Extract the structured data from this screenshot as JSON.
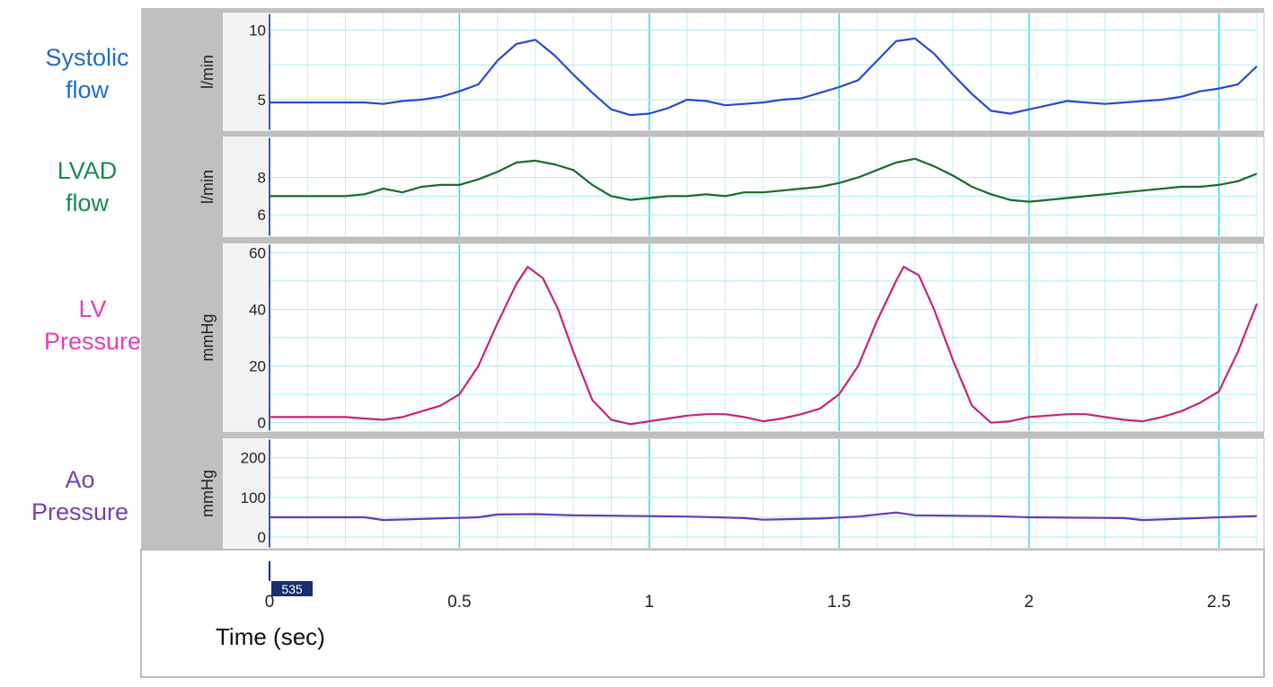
{
  "chart_data": {
    "type": "line",
    "time_axis": {
      "label": "Time (sec)",
      "range": [
        0,
        2.6
      ],
      "ticks": [
        0,
        0.5,
        1,
        1.5,
        2,
        2.5
      ],
      "tick_labels": [
        "0",
        "0.5",
        "1",
        "1.5",
        "2",
        "2.5"
      ],
      "grid_step": 0.1
    },
    "marker_label": "535",
    "panels": [
      {
        "name": "Systolic\nflow",
        "unit": "l/min",
        "color": "#2a4bd0",
        "label_color": "#1f6fc1",
        "yrange": [
          3,
          11
        ],
        "yticks": [
          5,
          10
        ],
        "series": {
          "x": [
            0.0,
            0.1,
            0.2,
            0.25,
            0.3,
            0.35,
            0.4,
            0.45,
            0.5,
            0.55,
            0.6,
            0.65,
            0.7,
            0.75,
            0.8,
            0.85,
            0.9,
            0.95,
            1.0,
            1.05,
            1.1,
            1.15,
            1.2,
            1.25,
            1.3,
            1.35,
            1.4,
            1.45,
            1.5,
            1.55,
            1.6,
            1.65,
            1.7,
            1.75,
            1.8,
            1.85,
            1.9,
            1.95,
            2.0,
            2.05,
            2.1,
            2.15,
            2.2,
            2.25,
            2.3,
            2.35,
            2.4,
            2.45,
            2.5,
            2.55,
            2.6
          ],
          "y": [
            4.8,
            4.8,
            4.8,
            4.8,
            4.7,
            4.9,
            5.0,
            5.2,
            5.6,
            6.1,
            7.8,
            9.0,
            9.3,
            8.2,
            6.8,
            5.5,
            4.3,
            3.9,
            4.0,
            4.4,
            5.0,
            4.9,
            4.6,
            4.7,
            4.8,
            5.0,
            5.1,
            5.5,
            5.9,
            6.4,
            7.8,
            9.2,
            9.4,
            8.3,
            6.8,
            5.4,
            4.2,
            4.0,
            4.3,
            4.6,
            4.9,
            4.8,
            4.7,
            4.8,
            4.9,
            5.0,
            5.2,
            5.6,
            5.8,
            6.1,
            7.4
          ]
        }
      },
      {
        "name": "LVAD\nflow",
        "unit": "l/min",
        "color": "#1d6a2c",
        "label_color": "#1c8a50",
        "yrange": [
          5,
          10
        ],
        "yticks": [
          6,
          8
        ],
        "series": {
          "x": [
            0.0,
            0.1,
            0.2,
            0.25,
            0.3,
            0.35,
            0.4,
            0.45,
            0.5,
            0.55,
            0.6,
            0.65,
            0.7,
            0.75,
            0.8,
            0.85,
            0.9,
            0.95,
            1.0,
            1.05,
            1.1,
            1.15,
            1.2,
            1.25,
            1.3,
            1.35,
            1.4,
            1.45,
            1.5,
            1.55,
            1.6,
            1.65,
            1.7,
            1.75,
            1.8,
            1.85,
            1.9,
            1.95,
            2.0,
            2.05,
            2.1,
            2.15,
            2.2,
            2.25,
            2.3,
            2.35,
            2.4,
            2.45,
            2.5,
            2.55,
            2.6
          ],
          "y": [
            7.0,
            7.0,
            7.0,
            7.1,
            7.4,
            7.2,
            7.5,
            7.6,
            7.6,
            7.9,
            8.3,
            8.8,
            8.9,
            8.7,
            8.4,
            7.6,
            7.0,
            6.8,
            6.9,
            7.0,
            7.0,
            7.1,
            7.0,
            7.2,
            7.2,
            7.3,
            7.4,
            7.5,
            7.7,
            8.0,
            8.4,
            8.8,
            9.0,
            8.6,
            8.1,
            7.5,
            7.1,
            6.8,
            6.7,
            6.8,
            6.9,
            7.0,
            7.1,
            7.2,
            7.3,
            7.4,
            7.5,
            7.5,
            7.6,
            7.8,
            8.2
          ]
        }
      },
      {
        "name": "LV\nPressure",
        "unit": "mmHg",
        "color": "#c8237a",
        "label_color": "#e43dbd",
        "yrange": [
          -2,
          62
        ],
        "yticks": [
          0,
          20,
          40,
          60
        ],
        "series": {
          "x": [
            0.0,
            0.1,
            0.2,
            0.25,
            0.3,
            0.35,
            0.4,
            0.45,
            0.5,
            0.55,
            0.6,
            0.65,
            0.68,
            0.72,
            0.76,
            0.8,
            0.85,
            0.9,
            0.95,
            1.0,
            1.05,
            1.1,
            1.15,
            1.2,
            1.25,
            1.3,
            1.35,
            1.4,
            1.45,
            1.5,
            1.55,
            1.6,
            1.65,
            1.67,
            1.71,
            1.75,
            1.8,
            1.85,
            1.9,
            1.95,
            2.0,
            2.05,
            2.1,
            2.15,
            2.2,
            2.25,
            2.3,
            2.35,
            2.4,
            2.45,
            2.5,
            2.55,
            2.6
          ],
          "y": [
            2,
            2,
            2,
            1.5,
            1,
            2,
            4,
            6,
            10,
            20,
            35,
            49,
            55,
            51,
            40,
            25,
            8,
            1,
            -0.5,
            0.5,
            1.5,
            2.5,
            3,
            3,
            2,
            0.5,
            1.5,
            3,
            5,
            10,
            20,
            36,
            50,
            55,
            52,
            40,
            22,
            6,
            0,
            0.5,
            2,
            2.5,
            3,
            3,
            2,
            1,
            0.5,
            2,
            4,
            7,
            11,
            25,
            42
          ]
        }
      },
      {
        "name": "Ao\nPressure",
        "unit": "mmHg",
        "color": "#6a39b8",
        "label_color": "#7a3fb0",
        "yrange": [
          -20,
          240
        ],
        "yticks": [
          0,
          100,
          200
        ],
        "series": {
          "x": [
            0.0,
            0.25,
            0.3,
            0.55,
            0.6,
            0.7,
            0.8,
            1.0,
            1.1,
            1.25,
            1.3,
            1.45,
            1.55,
            1.65,
            1.7,
            1.9,
            2.0,
            2.25,
            2.3,
            2.45,
            2.5,
            2.6
          ],
          "y": [
            50,
            50,
            43,
            50,
            57,
            58,
            55,
            53,
            52,
            48,
            44,
            47,
            52,
            62,
            55,
            53,
            50,
            48,
            43,
            48,
            50,
            53
          ]
        }
      }
    ]
  }
}
